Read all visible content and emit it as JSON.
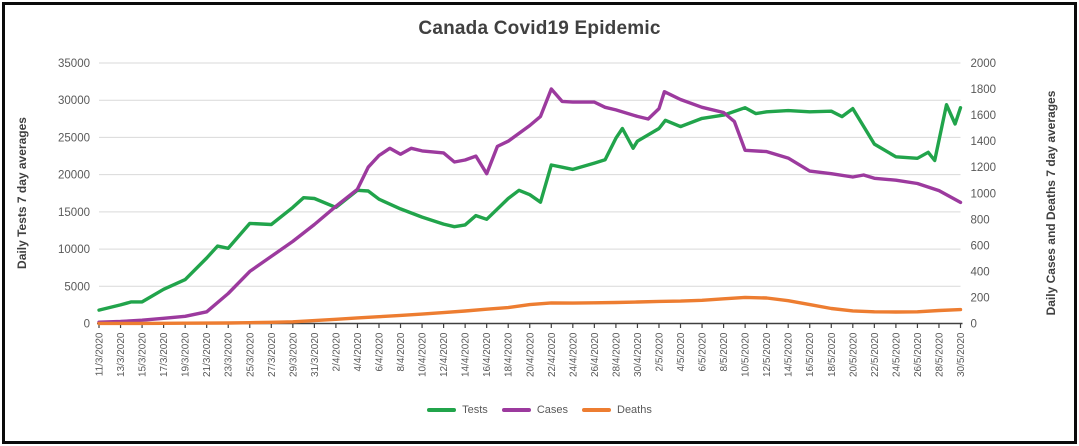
{
  "window": {
    "background": "#ffffff",
    "border_color": "#0b0b0b"
  },
  "style": {
    "grid_color": "#d9d9d9",
    "axis_line_color": "#595959",
    "tick_text_color": "#595959",
    "title_color": "#404040"
  },
  "legend": {
    "position": "bottom"
  },
  "chart_data": {
    "type": "line",
    "title": "Canada Covid19 Epidemic",
    "ylabel_left": "Daily Tests 7 day averages",
    "ylabel_right": "Daily Cases and Deaths 7 day averages",
    "xlabel": "",
    "grid": true,
    "legend_position": "bottom",
    "ylim_left": [
      0,
      35000
    ],
    "ytick_step_left": 5000,
    "ylim_right": [
      0,
      2000
    ],
    "ytick_step_right": 200,
    "x_range_days": [
      0,
      80
    ],
    "x_tick_every_days": 2,
    "x_tick_labels": [
      "11/3/2020",
      "13/3/2020",
      "15/3/2020",
      "17/3/2020",
      "19/3/2020",
      "21/3/2020",
      "23/3/2020",
      "25/3/2020",
      "27/3/2020",
      "29/3/2020",
      "31/3/2020",
      "2/4/2020",
      "4/4/2020",
      "6/4/2020",
      "8/4/2020",
      "10/4/2020",
      "12/4/2020",
      "14/4/2020",
      "16/4/2020",
      "18/4/2020",
      "20/4/2020",
      "22/4/2020",
      "24/4/2020",
      "26/4/2020",
      "28/4/2020",
      "30/4/2020",
      "2/5/2020",
      "4/5/2020",
      "6/5/2020",
      "8/5/2020",
      "10/5/2020",
      "12/5/2020",
      "14/5/2020",
      "16/5/2020",
      "18/5/2020",
      "20/5/2020",
      "22/5/2020",
      "24/5/2020",
      "26/5/2020",
      "28/5/2020",
      "30/5/2020"
    ],
    "series": [
      {
        "name": "Tests",
        "axis": "left",
        "color": "#21a44b",
        "points": [
          [
            0,
            1800
          ],
          [
            2,
            2500
          ],
          [
            3,
            2900
          ],
          [
            4,
            2900
          ],
          [
            6,
            4600
          ],
          [
            8,
            5900
          ],
          [
            10,
            8800
          ],
          [
            11,
            10400
          ],
          [
            12,
            10100
          ],
          [
            14,
            13450
          ],
          [
            16,
            13300
          ],
          [
            18,
            15600
          ],
          [
            19,
            16900
          ],
          [
            20,
            16800
          ],
          [
            22,
            15600
          ],
          [
            24,
            17900
          ],
          [
            25,
            17800
          ],
          [
            26,
            16700
          ],
          [
            28,
            15400
          ],
          [
            30,
            14300
          ],
          [
            32,
            13350
          ],
          [
            33,
            13000
          ],
          [
            34,
            13250
          ],
          [
            35,
            14500
          ],
          [
            36,
            14000
          ],
          [
            38,
            16800
          ],
          [
            39,
            17900
          ],
          [
            40,
            17300
          ],
          [
            41,
            16300
          ],
          [
            42,
            21300
          ],
          [
            43,
            21000
          ],
          [
            44,
            20700
          ],
          [
            46,
            21550
          ],
          [
            47,
            22000
          ],
          [
            48,
            24900
          ],
          [
            48.6,
            26200
          ],
          [
            49.6,
            23550
          ],
          [
            50,
            24500
          ],
          [
            52,
            26200
          ],
          [
            52.6,
            27300
          ],
          [
            54,
            26450
          ],
          [
            56,
            27550
          ],
          [
            58,
            28000
          ],
          [
            60,
            29000
          ],
          [
            61,
            28200
          ],
          [
            62,
            28450
          ],
          [
            64,
            28600
          ],
          [
            66,
            28450
          ],
          [
            68,
            28530
          ],
          [
            69,
            27800
          ],
          [
            70,
            28880
          ],
          [
            72,
            24100
          ],
          [
            74,
            22400
          ],
          [
            76,
            22200
          ],
          [
            77,
            23000
          ],
          [
            77.6,
            21900
          ],
          [
            78.7,
            29400
          ],
          [
            79.5,
            26800
          ],
          [
            80,
            29000
          ]
        ]
      },
      {
        "name": "Cases",
        "axis": "right",
        "color": "#9c3a9e",
        "points": [
          [
            0,
            10
          ],
          [
            2,
            15
          ],
          [
            4,
            25
          ],
          [
            6,
            40
          ],
          [
            8,
            55
          ],
          [
            10,
            90
          ],
          [
            12,
            230
          ],
          [
            14,
            400
          ],
          [
            16,
            515
          ],
          [
            18,
            630
          ],
          [
            20,
            760
          ],
          [
            22,
            900
          ],
          [
            24,
            1030
          ],
          [
            25,
            1200
          ],
          [
            26,
            1290
          ],
          [
            27,
            1345
          ],
          [
            28,
            1300
          ],
          [
            29,
            1345
          ],
          [
            30,
            1325
          ],
          [
            32,
            1310
          ],
          [
            33,
            1240
          ],
          [
            34,
            1255
          ],
          [
            35,
            1285
          ],
          [
            36,
            1150
          ],
          [
            37,
            1360
          ],
          [
            38,
            1400
          ],
          [
            40,
            1520
          ],
          [
            41,
            1590
          ],
          [
            42,
            1800
          ],
          [
            43,
            1705
          ],
          [
            44,
            1700
          ],
          [
            46,
            1700
          ],
          [
            47,
            1660
          ],
          [
            48,
            1640
          ],
          [
            50,
            1590
          ],
          [
            51,
            1570
          ],
          [
            52,
            1650
          ],
          [
            52.5,
            1780
          ],
          [
            54,
            1720
          ],
          [
            56,
            1660
          ],
          [
            58,
            1620
          ],
          [
            59,
            1550
          ],
          [
            60,
            1330
          ],
          [
            62,
            1320
          ],
          [
            64,
            1270
          ],
          [
            66,
            1170
          ],
          [
            68,
            1150
          ],
          [
            70,
            1125
          ],
          [
            71,
            1140
          ],
          [
            72,
            1115
          ],
          [
            74,
            1100
          ],
          [
            76,
            1075
          ],
          [
            78,
            1020
          ],
          [
            80,
            930
          ]
        ]
      },
      {
        "name": "Deaths",
        "axis": "right",
        "color": "#ed7d31",
        "points": [
          [
            0,
            1
          ],
          [
            4,
            1
          ],
          [
            8,
            2
          ],
          [
            12,
            4
          ],
          [
            14,
            6
          ],
          [
            16,
            9
          ],
          [
            18,
            13
          ],
          [
            20,
            22
          ],
          [
            22,
            32
          ],
          [
            24,
            43
          ],
          [
            26,
            52
          ],
          [
            28,
            62
          ],
          [
            30,
            72
          ],
          [
            32,
            84
          ],
          [
            34,
            96
          ],
          [
            36,
            110
          ],
          [
            38,
            122
          ],
          [
            40,
            145
          ],
          [
            42,
            158
          ],
          [
            44,
            157
          ],
          [
            46,
            159
          ],
          [
            48,
            161
          ],
          [
            50,
            165
          ],
          [
            52,
            170
          ],
          [
            54,
            172
          ],
          [
            56,
            178
          ],
          [
            58,
            190
          ],
          [
            60,
            200
          ],
          [
            62,
            196
          ],
          [
            64,
            175
          ],
          [
            66,
            145
          ],
          [
            68,
            115
          ],
          [
            70,
            97
          ],
          [
            72,
            90
          ],
          [
            74,
            88
          ],
          [
            76,
            90
          ],
          [
            78,
            100
          ],
          [
            80,
            107
          ]
        ]
      }
    ]
  }
}
